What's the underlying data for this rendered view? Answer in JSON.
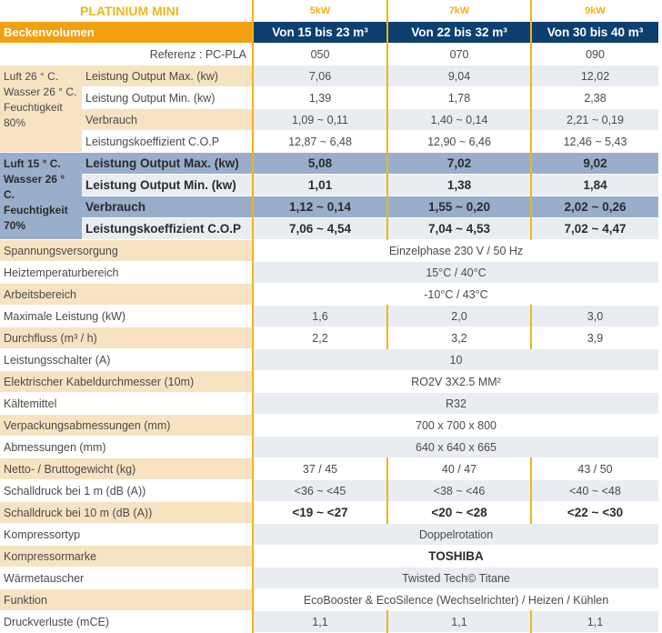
{
  "header": {
    "title": "PLATINIUM MINI",
    "powers": [
      "5kW",
      "7kW",
      "9kW"
    ]
  },
  "volume": {
    "label": "Beckenvolumen",
    "values": [
      "Von 15 bis 23 m³",
      "Von 22 bis 32 m³",
      "Von 30 bis 40 m³"
    ]
  },
  "reference": {
    "label": "Referenz : PC-PLA",
    "values": [
      "050",
      "070",
      "090"
    ]
  },
  "group1": {
    "condition": "Luft 26 ° C. Wasser 26 ° C. Feuchtigkeit 80%",
    "rows": [
      {
        "label": "Leistung Output Max. (kw)",
        "values": [
          "7,06",
          "9,04",
          "12,02"
        ]
      },
      {
        "label": "Leistung Output Min. (kw)",
        "values": [
          "1,39",
          "1,78",
          "2,38"
        ]
      },
      {
        "label": "Verbrauch",
        "values": [
          "1,09 ~ 0,11",
          "1,40 ~ 0,14",
          "2,21 ~ 0,19"
        ]
      },
      {
        "label": "Leistungskoeffizient C.O.P",
        "values": [
          "12,87 ~ 6,48",
          "12,90 ~ 6,46",
          "12,46 ~ 5,43"
        ]
      }
    ]
  },
  "group2": {
    "condition": "Luft 15 ° C. Wasser 26 ° C. Feuchtigkeit 70%",
    "rows": [
      {
        "label": "Leistung Output Max. (kw)",
        "values": [
          "5,08",
          "7,02",
          "9,02"
        ]
      },
      {
        "label": "Leistung Output Min. (kw)",
        "values": [
          "1,01",
          "1,38",
          "1,84"
        ]
      },
      {
        "label": "Verbrauch",
        "values": [
          "1,12 ~ 0,14",
          "1,55 ~ 0,20",
          "2,02 ~ 0,26"
        ]
      },
      {
        "label": "Leistungskoeffizient C.O.P",
        "values": [
          "7,06 ~ 4,54",
          "7,04 ~ 4,53",
          "7,02 ~ 4,47"
        ]
      }
    ]
  },
  "specs": [
    {
      "label": "Spannungsversorgung",
      "value": "Einzelphase 230 V / 50 Hz"
    },
    {
      "label": "Heiztemperaturbereich",
      "value": "15°C / 40°C"
    },
    {
      "label": "Arbeitsbereich",
      "value": "-10°C / 43°C"
    },
    {
      "label": "Maximale Leistung (kW)",
      "values": [
        "1,6",
        "2,0",
        "3,0"
      ]
    },
    {
      "label": "Durchfluss (m³ / h)",
      "values": [
        "2,2",
        "3,2",
        "3,9"
      ]
    },
    {
      "label": "Leistungsschalter (A)",
      "value": "10"
    },
    {
      "label": "Elektrischer Kabeldurchmesser (10m)",
      "value": "RO2V 3X2.5 MM²"
    },
    {
      "label": "Kältemittel",
      "value": "R32"
    },
    {
      "label": "Verpackungsabmessungen (mm)",
      "value": "700 x 700 x 800"
    },
    {
      "label": "Abmessungen (mm)",
      "value": "640 x 640 x 665"
    },
    {
      "label": "Netto- / Bruttogewicht (kg)",
      "values": [
        "37 / 45",
        "40 / 47",
        "43 / 50"
      ]
    },
    {
      "label": "Schalldruck bei 1 m (dB (A))",
      "values": [
        "<36 ~ <45",
        "<38 ~ <46",
        "<40 ~ <48"
      ]
    },
    {
      "label": "Schalldruck bei 10 m (dB (A))",
      "values": [
        "<19 ~ <27",
        "<20 ~ <28",
        "<22 ~ <30"
      ]
    },
    {
      "label": "Kompressortyp",
      "value": "Doppelrotation"
    },
    {
      "label": "Kompressormarke",
      "value": "TOSHIBA"
    },
    {
      "label": "Wärmetauscher",
      "value": "Twisted Tech© Titane"
    },
    {
      "label": "Funktion",
      "value": "EcoBooster & EcoSilence (Wechselrichter) / Heizen / Kühlen"
    },
    {
      "label": "Druckverluste (mCE)",
      "values": [
        "1,1",
        "1,1",
        "1,1"
      ]
    }
  ],
  "colors": {
    "orange": "#f2a010",
    "navy": "#0d3f6f",
    "beige": "#f7e3c2",
    "lightgray": "#e9edf2",
    "blue": "#98aecb"
  }
}
